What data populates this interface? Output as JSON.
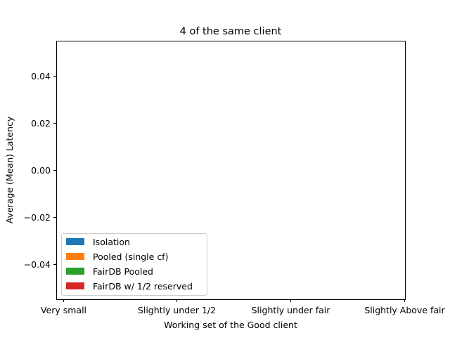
{
  "chart_data": {
    "type": "bar",
    "title": "4 of the same client",
    "xlabel": "Working set of the Good client",
    "ylabel": "Average (Mean) Latency",
    "categories": [
      "Very small",
      "Slightly under 1/2",
      "Slightly under fair",
      "Slightly Above fair"
    ],
    "ylim": [
      -0.055,
      0.055
    ],
    "yticks": [
      -0.04,
      -0.02,
      0.0,
      0.02,
      0.04
    ],
    "ytick_labels": [
      "−0.04",
      "−0.02",
      "0.00",
      "0.02",
      "0.04"
    ],
    "grid": false,
    "legend_position": "lower-left",
    "series": [
      {
        "name": "Isolation",
        "color": "#1f77b4",
        "values": [
          null,
          null,
          null,
          null
        ]
      },
      {
        "name": "Pooled (single cf)",
        "color": "#ff7f0e",
        "values": [
          null,
          null,
          null,
          null
        ]
      },
      {
        "name": "FairDB Pooled",
        "color": "#2ca02c",
        "values": [
          null,
          null,
          null,
          null
        ]
      },
      {
        "name": "FairDB w/ 1/2 reserved",
        "color": "#d62728",
        "values": [
          null,
          null,
          null,
          null
        ]
      }
    ]
  }
}
